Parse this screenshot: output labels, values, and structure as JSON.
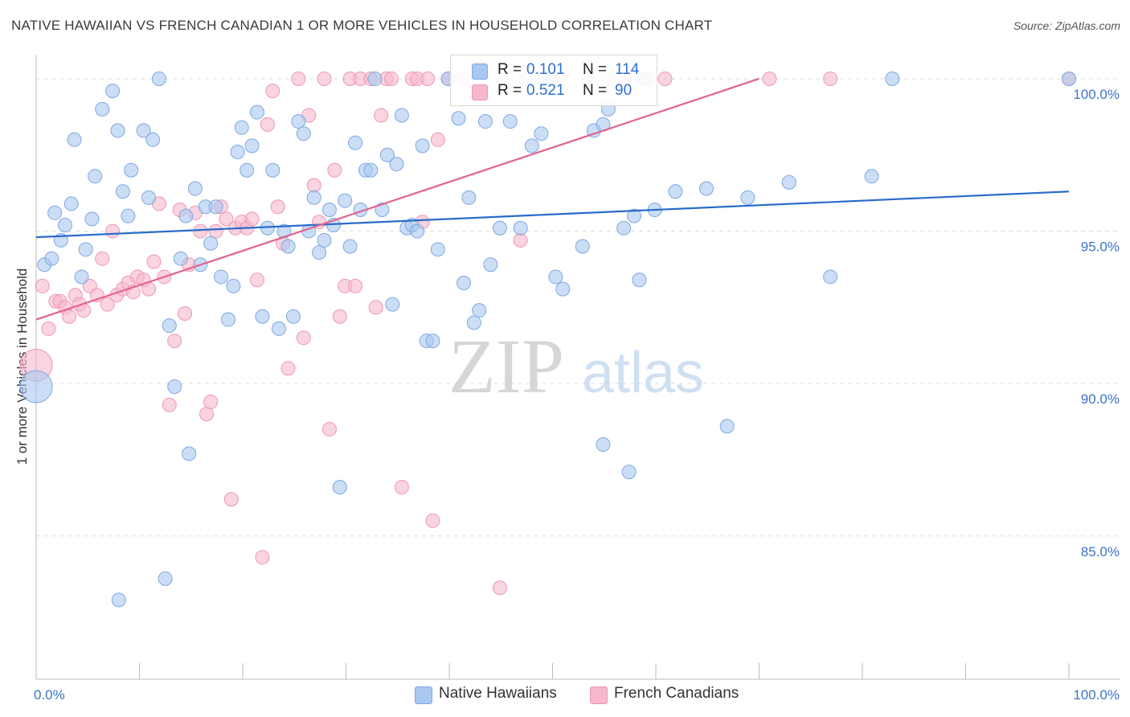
{
  "title": "NATIVE HAWAIIAN VS FRENCH CANADIAN 1 OR MORE VEHICLES IN HOUSEHOLD CORRELATION CHART",
  "source": "Source: ZipAtlas.com",
  "watermark": {
    "zip": "ZIP",
    "atlas": "atlas"
  },
  "colors": {
    "blue_fill": "#a8c8f0",
    "blue_stroke": "#7ea8e0",
    "blue_line": "#2a6cc9",
    "pink_fill": "#f6b8cb",
    "pink_stroke": "#ee97b2",
    "pink_line": "#e0648f",
    "tick_label": "#3b74c9",
    "grid": "#dddddd"
  },
  "legend_top": {
    "series": [
      {
        "r_label": "R =",
        "r_value": "0.101",
        "n_label": "N =",
        "n_value": "114"
      },
      {
        "r_label": "R =",
        "r_value": "0.521",
        "n_label": "N =",
        "n_value": "90"
      }
    ]
  },
  "chart_data": {
    "type": "scatter",
    "title": "NATIVE HAWAIIAN VS FRENCH CANADIAN 1 OR MORE VEHICLES IN HOUSEHOLD CORRELATION CHART",
    "xlabel": "",
    "ylabel": "1 or more Vehicles in Household",
    "xlim": [
      0,
      100
    ],
    "ylim": [
      80.3,
      100.5
    ],
    "x_tick_labels": [
      {
        "value": 0,
        "label": "0.0%"
      },
      {
        "value": 100,
        "label": "100.0%"
      }
    ],
    "y_ticks": [
      {
        "value": 100,
        "label": "100.0%"
      },
      {
        "value": 95,
        "label": "95.0%"
      },
      {
        "value": 90,
        "label": "90.0%"
      },
      {
        "value": 85,
        "label": "85.0%"
      }
    ],
    "grid": true,
    "legend_position": "bottom-center",
    "series": [
      {
        "name": "Native Hawaiians",
        "color": "#a8c8f0",
        "trend": {
          "x": [
            0,
            100
          ],
          "y": [
            94.8,
            96.3
          ]
        },
        "points": [
          [
            0.8,
            93.9
          ],
          [
            1.5,
            94.1
          ],
          [
            1.8,
            95.6
          ],
          [
            2.4,
            94.7
          ],
          [
            2.8,
            95.2
          ],
          [
            3.4,
            95.9
          ],
          [
            3.7,
            98.0
          ],
          [
            4.4,
            93.5
          ],
          [
            4.8,
            94.4
          ],
          [
            5.4,
            95.4
          ],
          [
            5.7,
            96.8
          ],
          [
            6.4,
            99.0
          ],
          [
            7.4,
            99.6
          ],
          [
            7.9,
            98.3
          ],
          [
            8.4,
            96.3
          ],
          [
            8.9,
            95.5
          ],
          [
            9.2,
            97.0
          ],
          [
            10.4,
            98.3
          ],
          [
            10.9,
            96.1
          ],
          [
            11.3,
            98.0
          ],
          [
            11.9,
            100.0
          ],
          [
            12.9,
            91.9
          ],
          [
            13.4,
            89.9
          ],
          [
            14.0,
            94.1
          ],
          [
            14.5,
            95.5
          ],
          [
            14.8,
            87.7
          ],
          [
            15.4,
            96.4
          ],
          [
            15.9,
            93.9
          ],
          [
            16.4,
            95.8
          ],
          [
            16.9,
            94.6
          ],
          [
            17.4,
            95.8
          ],
          [
            17.9,
            93.5
          ],
          [
            18.6,
            92.1
          ],
          [
            19.1,
            93.2
          ],
          [
            19.5,
            97.6
          ],
          [
            19.9,
            98.4
          ],
          [
            20.4,
            97.0
          ],
          [
            20.9,
            97.8
          ],
          [
            21.4,
            98.9
          ],
          [
            21.9,
            92.2
          ],
          [
            22.4,
            95.1
          ],
          [
            22.9,
            97.0
          ],
          [
            23.5,
            91.8
          ],
          [
            24.0,
            95.0
          ],
          [
            24.4,
            94.5
          ],
          [
            24.9,
            92.2
          ],
          [
            25.4,
            98.6
          ],
          [
            25.9,
            98.2
          ],
          [
            26.4,
            95.0
          ],
          [
            26.9,
            96.1
          ],
          [
            27.4,
            94.3
          ],
          [
            27.9,
            94.7
          ],
          [
            28.4,
            95.7
          ],
          [
            28.8,
            95.2
          ],
          [
            29.4,
            86.6
          ],
          [
            29.9,
            96.0
          ],
          [
            30.4,
            94.5
          ],
          [
            30.9,
            97.9
          ],
          [
            31.4,
            95.7
          ],
          [
            31.9,
            97.0
          ],
          [
            32.4,
            97.0
          ],
          [
            32.8,
            100.0
          ],
          [
            33.5,
            95.7
          ],
          [
            34.0,
            97.5
          ],
          [
            34.5,
            92.6
          ],
          [
            34.9,
            97.2
          ],
          [
            35.4,
            98.8
          ],
          [
            35.9,
            95.1
          ],
          [
            36.4,
            95.2
          ],
          [
            36.9,
            95.0
          ],
          [
            37.4,
            97.8
          ],
          [
            37.8,
            91.4
          ],
          [
            38.4,
            91.4
          ],
          [
            38.9,
            94.4
          ],
          [
            39.9,
            100.0
          ],
          [
            40.9,
            98.7
          ],
          [
            41.4,
            93.3
          ],
          [
            41.9,
            96.1
          ],
          [
            42.4,
            92.0
          ],
          [
            42.9,
            92.4
          ],
          [
            43.5,
            98.6
          ],
          [
            44.0,
            93.9
          ],
          [
            44.9,
            95.1
          ],
          [
            45.9,
            98.6
          ],
          [
            46.9,
            95.1
          ],
          [
            48.0,
            97.8
          ],
          [
            48.9,
            98.2
          ],
          [
            49.8,
            100.0
          ],
          [
            50.3,
            93.5
          ],
          [
            51.0,
            93.1
          ],
          [
            52.9,
            94.5
          ],
          [
            54.0,
            98.3
          ],
          [
            54.9,
            98.5
          ],
          [
            54.9,
            88.0
          ],
          [
            55.4,
            99.0
          ],
          [
            56.9,
            95.1
          ],
          [
            57.4,
            87.1
          ],
          [
            57.9,
            95.5
          ],
          [
            58.4,
            93.4
          ],
          [
            58.9,
            100.0
          ],
          [
            59.9,
            95.7
          ],
          [
            61.9,
            96.3
          ],
          [
            64.9,
            96.4
          ],
          [
            66.9,
            88.6
          ],
          [
            68.9,
            96.1
          ],
          [
            72.9,
            96.6
          ],
          [
            76.9,
            93.5
          ],
          [
            80.9,
            96.8
          ],
          [
            82.9,
            100.0
          ],
          [
            100.0,
            100.0
          ],
          [
            8.0,
            82.9
          ],
          [
            12.5,
            83.6
          ],
          [
            0.0,
            89.9
          ]
        ]
      },
      {
        "name": "French Canadians",
        "color": "#f6b8cb",
        "trend": {
          "x": [
            0,
            70
          ],
          "y": [
            92.1,
            100.0
          ]
        },
        "points": [
          [
            0.6,
            93.2
          ],
          [
            1.2,
            91.8
          ],
          [
            1.9,
            92.7
          ],
          [
            2.3,
            92.7
          ],
          [
            2.8,
            92.5
          ],
          [
            3.2,
            92.2
          ],
          [
            3.8,
            92.9
          ],
          [
            4.2,
            92.6
          ],
          [
            4.6,
            92.4
          ],
          [
            5.2,
            93.2
          ],
          [
            5.9,
            92.9
          ],
          [
            6.4,
            94.1
          ],
          [
            6.9,
            92.6
          ],
          [
            7.4,
            95.0
          ],
          [
            7.8,
            92.9
          ],
          [
            8.4,
            93.1
          ],
          [
            8.9,
            93.3
          ],
          [
            9.4,
            93.0
          ],
          [
            9.8,
            93.5
          ],
          [
            10.4,
            93.4
          ],
          [
            10.9,
            93.1
          ],
          [
            11.4,
            94.0
          ],
          [
            11.9,
            95.9
          ],
          [
            12.4,
            93.5
          ],
          [
            12.9,
            89.3
          ],
          [
            13.4,
            91.4
          ],
          [
            13.9,
            95.7
          ],
          [
            14.4,
            92.3
          ],
          [
            14.8,
            93.9
          ],
          [
            15.4,
            95.6
          ],
          [
            15.9,
            95.0
          ],
          [
            16.5,
            89.0
          ],
          [
            16.9,
            89.4
          ],
          [
            17.4,
            95.0
          ],
          [
            17.9,
            95.8
          ],
          [
            18.4,
            95.4
          ],
          [
            18.9,
            86.2
          ],
          [
            19.3,
            95.1
          ],
          [
            19.9,
            95.3
          ],
          [
            20.4,
            95.1
          ],
          [
            20.9,
            95.4
          ],
          [
            21.4,
            93.4
          ],
          [
            21.9,
            84.3
          ],
          [
            22.4,
            98.5
          ],
          [
            22.9,
            99.6
          ],
          [
            23.4,
            95.8
          ],
          [
            23.9,
            94.6
          ],
          [
            24.4,
            90.5
          ],
          [
            25.4,
            100.0
          ],
          [
            25.9,
            91.5
          ],
          [
            26.4,
            98.8
          ],
          [
            26.9,
            96.5
          ],
          [
            27.4,
            95.3
          ],
          [
            27.9,
            100.0
          ],
          [
            28.4,
            88.5
          ],
          [
            28.9,
            97.0
          ],
          [
            29.4,
            92.2
          ],
          [
            29.9,
            93.2
          ],
          [
            30.4,
            100.0
          ],
          [
            30.9,
            93.2
          ],
          [
            31.4,
            100.0
          ],
          [
            32.4,
            100.0
          ],
          [
            32.9,
            92.5
          ],
          [
            33.4,
            98.8
          ],
          [
            33.9,
            100.0
          ],
          [
            34.4,
            100.0
          ],
          [
            35.4,
            86.6
          ],
          [
            36.4,
            100.0
          ],
          [
            36.9,
            100.0
          ],
          [
            37.4,
            95.3
          ],
          [
            37.9,
            100.0
          ],
          [
            38.4,
            85.5
          ],
          [
            38.9,
            98.0
          ],
          [
            39.9,
            100.0
          ],
          [
            41.4,
            100.0
          ],
          [
            44.9,
            83.3
          ],
          [
            46.9,
            94.7
          ],
          [
            47.4,
            100.0
          ],
          [
            49.9,
            100.0
          ],
          [
            50.9,
            100.0
          ],
          [
            53.4,
            100.0
          ],
          [
            55.4,
            100.0
          ],
          [
            56.9,
            100.0
          ],
          [
            58.9,
            100.0
          ],
          [
            59.4,
            100.0
          ],
          [
            60.9,
            100.0
          ],
          [
            71.0,
            100.0
          ],
          [
            76.9,
            100.0
          ],
          [
            100.0,
            100.0
          ],
          [
            0.0,
            90.6
          ]
        ]
      }
    ]
  }
}
